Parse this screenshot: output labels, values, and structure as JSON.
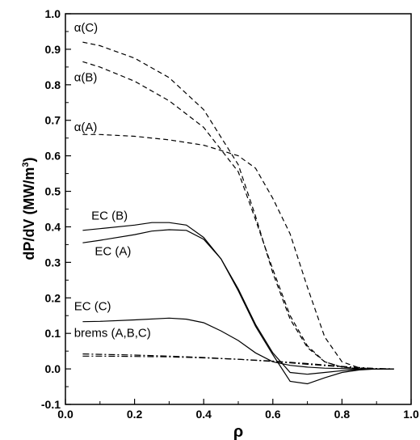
{
  "chart_data": {
    "type": "line",
    "xlabel": "ρ",
    "ylabel": {
      "main": "dP/dV (MW/m",
      "sup": "3",
      "end": ")"
    },
    "xlim": [
      0.0,
      1.0
    ],
    "ylim": [
      -0.1,
      1.0
    ],
    "xticks": [
      "0.0",
      "0.2",
      "0.4",
      "0.6",
      "0.8",
      "1.0"
    ],
    "yticks": [
      "-0.1",
      "0.0",
      "0.1",
      "0.2",
      "0.3",
      "0.4",
      "0.5",
      "0.6",
      "0.7",
      "0.8",
      "0.9",
      "1.0"
    ],
    "grid": false,
    "annotations": [
      {
        "text": "α(C)",
        "x": 0.025,
        "y": 0.95
      },
      {
        "text": "α(B)",
        "x": 0.025,
        "y": 0.81
      },
      {
        "text": "α(A)",
        "x": 0.025,
        "y": 0.67
      },
      {
        "text": "EC (B)",
        "x": 0.075,
        "y": 0.42
      },
      {
        "text": "EC (A)",
        "x": 0.085,
        "y": 0.32
      },
      {
        "text": "EC (C)",
        "x": 0.025,
        "y": 0.165
      },
      {
        "text": "brems (A,B,C)",
        "x": 0.025,
        "y": 0.09
      }
    ],
    "series": [
      {
        "style": "dashed",
        "x": [
          0.05,
          0.1,
          0.2,
          0.3,
          0.4,
          0.5,
          0.55,
          0.6,
          0.65,
          0.7,
          0.75,
          0.8,
          0.85,
          0.9,
          0.95
        ],
        "y": [
          0.92,
          0.91,
          0.875,
          0.82,
          0.73,
          0.575,
          0.43,
          0.27,
          0.14,
          0.06,
          0.02,
          0.005,
          0.001,
          0.0,
          0.0
        ]
      },
      {
        "style": "dashed",
        "x": [
          0.05,
          0.1,
          0.2,
          0.3,
          0.4,
          0.5,
          0.55,
          0.6,
          0.65,
          0.7,
          0.75,
          0.8,
          0.85,
          0.9,
          0.95
        ],
        "y": [
          0.865,
          0.85,
          0.81,
          0.755,
          0.68,
          0.555,
          0.42,
          0.28,
          0.15,
          0.065,
          0.02,
          0.005,
          0.001,
          0.0,
          0.0
        ]
      },
      {
        "style": "dashed",
        "x": [
          0.05,
          0.1,
          0.2,
          0.3,
          0.4,
          0.5,
          0.55,
          0.6,
          0.65,
          0.7,
          0.75,
          0.8,
          0.85,
          0.9,
          0.95
        ],
        "y": [
          0.66,
          0.66,
          0.655,
          0.645,
          0.63,
          0.6,
          0.565,
          0.48,
          0.38,
          0.23,
          0.09,
          0.02,
          0.003,
          0.0,
          0.0
        ]
      },
      {
        "style": "solid",
        "x": [
          0.05,
          0.1,
          0.2,
          0.25,
          0.3,
          0.35,
          0.4,
          0.45,
          0.5,
          0.55,
          0.6,
          0.65,
          0.7,
          0.75,
          0.8,
          0.85,
          0.9,
          0.95
        ],
        "y": [
          0.39,
          0.395,
          0.405,
          0.412,
          0.412,
          0.405,
          0.37,
          0.31,
          0.22,
          0.12,
          0.04,
          -0.035,
          -0.042,
          -0.025,
          -0.01,
          -0.003,
          0.0,
          0.0
        ]
      },
      {
        "style": "solid",
        "x": [
          0.05,
          0.1,
          0.2,
          0.25,
          0.3,
          0.35,
          0.4,
          0.45,
          0.5,
          0.55,
          0.6,
          0.65,
          0.7,
          0.75,
          0.8,
          0.85,
          0.9,
          0.95
        ],
        "y": [
          0.355,
          0.362,
          0.378,
          0.388,
          0.392,
          0.39,
          0.365,
          0.31,
          0.225,
          0.125,
          0.045,
          -0.01,
          -0.015,
          -0.01,
          -0.005,
          -0.001,
          0.0,
          0.0
        ]
      },
      {
        "style": "solid",
        "x": [
          0.05,
          0.1,
          0.2,
          0.3,
          0.35,
          0.4,
          0.45,
          0.5,
          0.55,
          0.6,
          0.65,
          0.7,
          0.75,
          0.8,
          0.85,
          0.9,
          0.95
        ],
        "y": [
          0.133,
          0.134,
          0.138,
          0.143,
          0.14,
          0.13,
          0.107,
          0.08,
          0.045,
          0.02,
          0.01,
          0.005,
          0.002,
          0.001,
          0.0,
          0.0,
          0.0
        ]
      },
      {
        "style": "dashdot",
        "x": [
          0.05,
          0.1,
          0.2,
          0.3,
          0.4,
          0.5,
          0.6,
          0.7,
          0.8,
          0.9,
          0.95
        ],
        "y": [
          0.042,
          0.041,
          0.039,
          0.036,
          0.032,
          0.027,
          0.021,
          0.013,
          0.006,
          0.001,
          0.0
        ]
      },
      {
        "style": "dashdot",
        "x": [
          0.05,
          0.1,
          0.2,
          0.3,
          0.4,
          0.5,
          0.6,
          0.7,
          0.8,
          0.9,
          0.95
        ],
        "y": [
          0.036,
          0.036,
          0.035,
          0.034,
          0.031,
          0.027,
          0.022,
          0.015,
          0.007,
          0.001,
          0.0
        ]
      }
    ]
  }
}
